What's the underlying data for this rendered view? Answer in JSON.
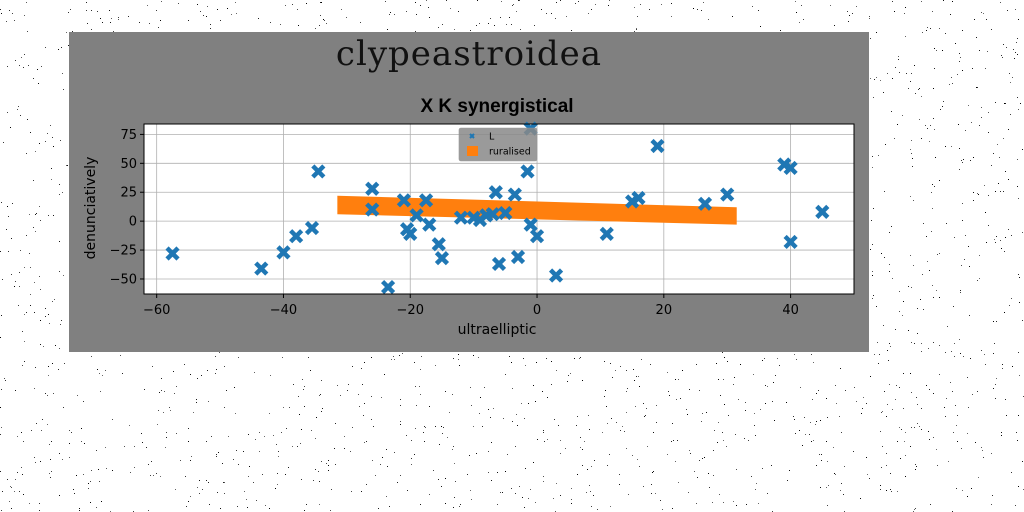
{
  "figure": {
    "suptitle": "clypeastroidea",
    "background": "#808080"
  },
  "chart_data": {
    "type": "scatter",
    "title": "X K synergistical",
    "xlabel": "ultraelliptic",
    "ylabel": "denunciatively",
    "xlim": [
      -62,
      50
    ],
    "ylim": [
      -63,
      84
    ],
    "xticks": [
      -60,
      -40,
      -20,
      0,
      20,
      40
    ],
    "yticks": [
      -50,
      -25,
      0,
      25,
      50,
      75
    ],
    "grid": true,
    "legend_position": "top-center",
    "series": [
      {
        "name": "L",
        "kind": "scatter",
        "marker": "x",
        "color": "#1f77b4",
        "points": [
          [
            -57.5,
            -28
          ],
          [
            -43.5,
            -41
          ],
          [
            -40,
            -27
          ],
          [
            -38,
            -13
          ],
          [
            -35.5,
            -6
          ],
          [
            -34.5,
            43
          ],
          [
            -26,
            28
          ],
          [
            -26,
            10
          ],
          [
            -23.5,
            -57
          ],
          [
            -21,
            18
          ],
          [
            -20.5,
            -7
          ],
          [
            -20,
            -11
          ],
          [
            -19,
            5
          ],
          [
            -17.5,
            18
          ],
          [
            -17,
            -3
          ],
          [
            -15.5,
            -20
          ],
          [
            -15,
            -32
          ],
          [
            -12,
            3
          ],
          [
            -10,
            3
          ],
          [
            -9,
            1
          ],
          [
            -8,
            5
          ],
          [
            -7,
            6
          ],
          [
            -6.5,
            25
          ],
          [
            -6,
            -37
          ],
          [
            -5,
            7
          ],
          [
            -3.5,
            23
          ],
          [
            -3,
            -31
          ],
          [
            -1.5,
            43
          ],
          [
            -1,
            80
          ],
          [
            -1,
            -3
          ],
          [
            0,
            -13
          ],
          [
            3,
            -47
          ],
          [
            11,
            -11
          ],
          [
            15,
            17
          ],
          [
            16,
            20
          ],
          [
            19,
            65
          ],
          [
            26.5,
            15
          ],
          [
            30,
            23
          ],
          [
            39,
            49
          ],
          [
            40,
            46
          ],
          [
            40,
            -18
          ],
          [
            45,
            8
          ]
        ]
      },
      {
        "name": "ruralised",
        "kind": "band",
        "color": "#ff7f0e",
        "x_range": [
          -31.5,
          31.5
        ],
        "upper": [
          22,
          12
        ],
        "lower": [
          6,
          -3
        ]
      }
    ]
  }
}
